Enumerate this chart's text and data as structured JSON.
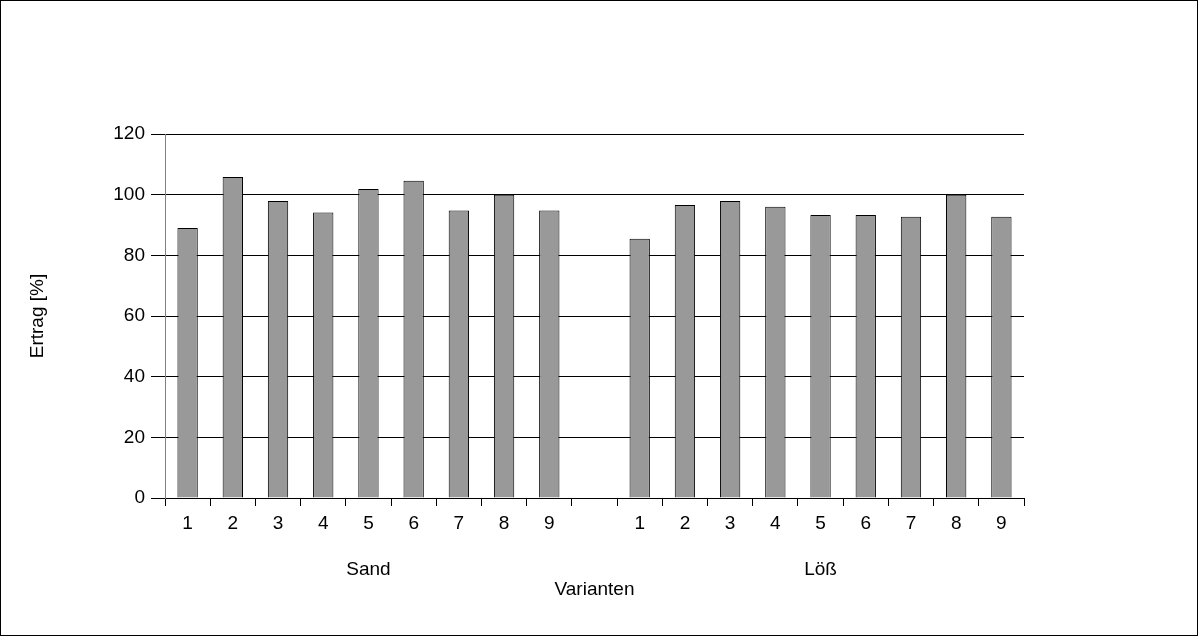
{
  "chart_data": {
    "type": "bar",
    "xlabel": "Varianten",
    "ylabel": "Ertrag [%]",
    "categories": [
      "1",
      "2",
      "3",
      "4",
      "5",
      "6",
      "7",
      "8",
      "9",
      null,
      "1",
      "2",
      "3",
      "4",
      "5",
      "6",
      "7",
      "8",
      "9"
    ],
    "values": [
      89,
      105.8,
      97.9,
      94.1,
      101.9,
      104.6,
      94.8,
      100,
      94.8,
      null,
      85.5,
      96.6,
      97.9,
      96,
      93.3,
      93.3,
      92.7,
      100,
      92.7
    ],
    "color": "#999999",
    "ylim": [
      0,
      120
    ],
    "yticks": [
      0,
      20,
      40,
      60,
      80,
      100,
      120
    ],
    "grid": "y",
    "legend": false,
    "annotations": [
      "Sand",
      "Löß"
    ]
  }
}
